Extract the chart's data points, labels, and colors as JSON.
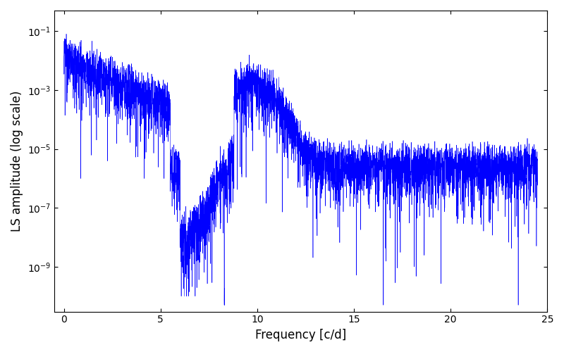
{
  "xlabel": "Frequency [c/d]",
  "ylabel": "LS amplitude (log scale)",
  "xlim": [
    -0.5,
    25
  ],
  "ylim": [
    3e-11,
    0.5
  ],
  "line_color": "#0000ff",
  "line_width": 0.4,
  "figsize": [
    8.0,
    5.0
  ],
  "dpi": 100,
  "seed": 12345,
  "n_points": 5000,
  "freq_max": 24.5,
  "background_color": "#ffffff"
}
